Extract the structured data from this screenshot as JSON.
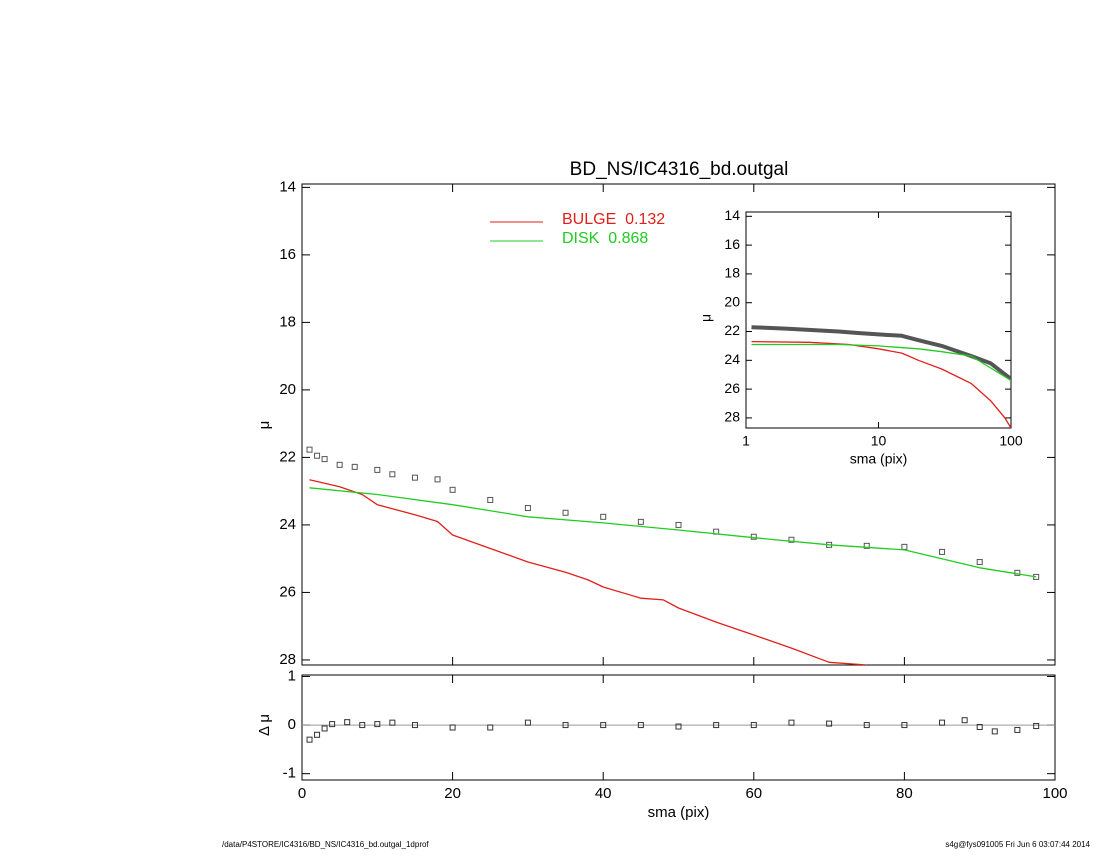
{
  "chart_data": [
    {
      "type": "line",
      "title": "BD_NS/IC4316_bd.outgal",
      "y_label": "μ",
      "xlim": [
        0,
        100
      ],
      "ylim": [
        13.9,
        28.15
      ],
      "y_reversed": true,
      "yticks": [
        14,
        16,
        18,
        20,
        22,
        24,
        26,
        28
      ],
      "series": [
        {
          "style": "squares",
          "color": "#555555",
          "x": [
            1,
            2,
            3,
            5,
            7,
            10,
            12,
            15,
            18,
            20,
            25,
            30,
            35,
            40,
            45,
            50,
            55,
            60,
            65,
            70,
            75,
            80,
            85,
            90,
            95,
            97.5
          ],
          "values": [
            21.77,
            21.95,
            22.05,
            22.22,
            22.28,
            22.37,
            22.5,
            22.6,
            22.65,
            22.96,
            23.26,
            23.5,
            23.64,
            23.76,
            23.91,
            24.0,
            24.2,
            24.35,
            24.44,
            24.59,
            24.62,
            24.65,
            24.8,
            25.1,
            25.42,
            25.54
          ]
        },
        {
          "name": "BULGE  0.132",
          "style": "line",
          "color": "#e0201b",
          "x": [
            1,
            5,
            8,
            10,
            15,
            18,
            20,
            25,
            30,
            35,
            38,
            40,
            45,
            48,
            50,
            55,
            60,
            65,
            70,
            75
          ],
          "values": [
            22.66,
            22.87,
            23.1,
            23.4,
            23.7,
            23.9,
            24.3,
            24.7,
            25.1,
            25.4,
            25.63,
            25.84,
            26.17,
            26.22,
            26.46,
            26.88,
            27.26,
            27.65,
            28.07,
            28.15
          ]
        },
        {
          "name": "DISK  0.868",
          "style": "line",
          "color": "#22cc22",
          "x": [
            1,
            10,
            20,
            30,
            40,
            50,
            60,
            70,
            80,
            90,
            97.5
          ],
          "values": [
            22.9,
            23.1,
            23.4,
            23.76,
            23.94,
            24.15,
            24.38,
            24.59,
            24.74,
            25.27,
            25.54
          ]
        }
      ]
    },
    {
      "type": "line",
      "x_label": "sma (pix)",
      "y_label": "Δ μ",
      "xlim": [
        0,
        100
      ],
      "xticks": [
        0,
        20,
        40,
        60,
        80,
        100
      ],
      "ylim": [
        -1.13,
        1.03
      ],
      "yticks": [
        -1,
        0,
        1
      ],
      "reference_line": 0,
      "series": [
        {
          "style": "squares",
          "color": "#333333",
          "x": [
            1,
            2,
            3,
            4,
            6,
            8,
            10,
            12,
            15,
            20,
            25,
            30,
            35,
            40,
            45,
            50,
            55,
            60,
            65,
            70,
            75,
            80,
            85,
            88,
            90,
            92,
            95,
            97.5
          ],
          "values": [
            -0.3,
            -0.2,
            -0.07,
            0.02,
            0.06,
            0.0,
            0.02,
            0.05,
            0.0,
            -0.05,
            -0.05,
            0.05,
            0.0,
            0.0,
            0.0,
            -0.03,
            0.0,
            0.0,
            0.05,
            0.03,
            0.0,
            0.0,
            0.05,
            0.1,
            -0.04,
            -0.13,
            -0.1,
            -0.02
          ]
        }
      ]
    },
    {
      "type": "line",
      "x_label": "sma (pix)",
      "y_label": "μ",
      "log_x": true,
      "xlim": [
        1,
        100
      ],
      "xticks": [
        1,
        10,
        100
      ],
      "ylim": [
        13.7,
        28.7
      ],
      "y_reversed": true,
      "yticks": [
        14,
        16,
        18,
        20,
        22,
        24,
        26,
        28
      ],
      "series": [
        {
          "style": "thick",
          "color": "#555555",
          "x": [
            1.1,
            2,
            5,
            7,
            10,
            15,
            20,
            30,
            50,
            70,
            100
          ],
          "values": [
            21.7,
            21.8,
            22.0,
            22.1,
            22.2,
            22.3,
            22.6,
            23.0,
            23.7,
            24.2,
            25.3
          ]
        },
        {
          "style": "line",
          "color": "#e0201b",
          "x": [
            1.1,
            3,
            6,
            10,
            15,
            20,
            30,
            50,
            70,
            90,
            100
          ],
          "values": [
            22.7,
            22.75,
            22.9,
            23.2,
            23.5,
            24.0,
            24.6,
            25.6,
            26.8,
            28.0,
            28.7
          ]
        },
        {
          "style": "line",
          "color": "#22cc22",
          "x": [
            1.1,
            5,
            10,
            20,
            30,
            50,
            100
          ],
          "values": [
            22.9,
            22.9,
            23.0,
            23.2,
            23.4,
            23.7,
            25.4
          ]
        }
      ]
    }
  ],
  "footer_left": "/data/P4STORE/IC4316/BD_NS/IC4316_bd.outgal_1dprof",
  "footer_right": "s4g@fys091005  Fri Jun  6 03:07:44 2014"
}
